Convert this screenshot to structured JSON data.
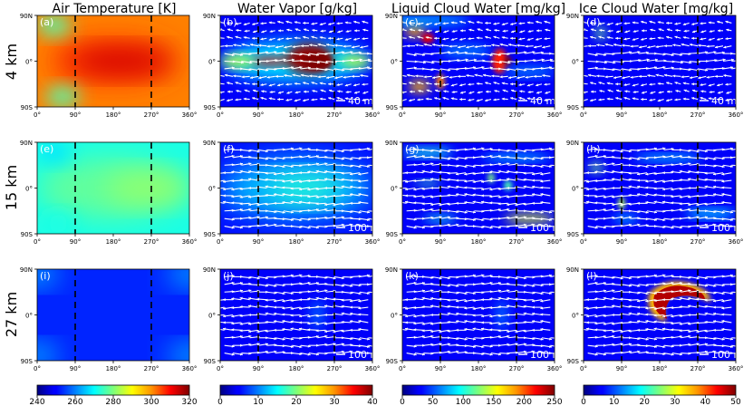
{
  "figure": {
    "column_titles": [
      "Air Temperature [K]",
      "Water Vapor [g/kg]",
      "Liquid Cloud Water [mg/kg]",
      "Ice Cloud Water [mg/kg]"
    ],
    "row_labels": [
      "4 km",
      "15 km",
      "27 km"
    ],
    "lon_ticks": [
      "0°",
      "90°",
      "180°",
      "270°",
      "360°"
    ],
    "lat_ticks": [
      "90N",
      "0°",
      "90S"
    ],
    "dashed_lines_lon": [
      90,
      270
    ]
  },
  "chart_data": [
    {
      "type": "heatmap",
      "panel": "(a)",
      "variable": "Air Temperature [K]",
      "altitude": "4 km",
      "x": [
        0,
        360
      ],
      "y": [
        -90,
        90
      ],
      "vlim": [
        240,
        320
      ],
      "vectors": false,
      "features": "warm equatorial band ~305-315 K, cooler high latitudes ~285 K"
    },
    {
      "type": "heatmap",
      "panel": "(b)",
      "variable": "Water Vapor [g/kg]",
      "altitude": "4 km",
      "x": [
        0,
        360
      ],
      "y": [
        -90,
        90
      ],
      "vlim": [
        0,
        40
      ],
      "vectors": true,
      "vector_key": "40 m/s",
      "features": "moist equatorial band, maximum >40 g/kg near 180-250°"
    },
    {
      "type": "heatmap",
      "panel": "(c)",
      "variable": "Liquid Cloud Water [mg/kg]",
      "altitude": "4 km",
      "x": [
        0,
        360
      ],
      "y": [
        -90,
        90
      ],
      "vlim": [
        0,
        250
      ],
      "vectors": true,
      "vector_key": "40 m/s",
      "features": "clouds near 20-60° mid-latitudes and near 210-240° equator"
    },
    {
      "type": "heatmap",
      "panel": "(d)",
      "variable": "Ice Cloud Water [mg/kg]",
      "altitude": "4 km",
      "x": [
        0,
        360
      ],
      "y": [
        -90,
        90
      ],
      "vlim": [
        0,
        50
      ],
      "vectors": true,
      "vector_key": "40 m/s",
      "features": "small patches near 40°,60N"
    },
    {
      "type": "heatmap",
      "panel": "(e)",
      "variable": "Air Temperature [K]",
      "altitude": "15 km",
      "x": [
        0,
        360
      ],
      "y": [
        -90,
        90
      ],
      "vlim": [
        240,
        320
      ],
      "vectors": false,
      "features": "mostly 265-280 K"
    },
    {
      "type": "heatmap",
      "panel": "(f)",
      "variable": "Water Vapor [g/kg]",
      "altitude": "15 km",
      "x": [
        0,
        360
      ],
      "y": [
        -90,
        90
      ],
      "vlim": [
        0,
        40
      ],
      "vectors": true,
      "vector_key": "100 m/s",
      "features": "low values 5-15 g/kg"
    },
    {
      "type": "heatmap",
      "panel": "(g)",
      "variable": "Liquid Cloud Water [mg/kg]",
      "altitude": "15 km",
      "x": [
        0,
        360
      ],
      "y": [
        -90,
        90
      ],
      "vlim": [
        0,
        250
      ],
      "vectors": true,
      "vector_key": "100 m/s",
      "features": "streaks at mid-latitudes, patches near 200-270°"
    },
    {
      "type": "heatmap",
      "panel": "(h)",
      "variable": "Ice Cloud Water [mg/kg]",
      "altitude": "15 km",
      "x": [
        0,
        360
      ],
      "y": [
        -90,
        90
      ],
      "vlim": [
        0,
        50
      ],
      "vectors": true,
      "vector_key": "100 m/s",
      "features": "thin streaks, patch near 20°,40N"
    },
    {
      "type": "heatmap",
      "panel": "(i)",
      "variable": "Air Temperature [K]",
      "altitude": "27 km",
      "x": [
        0,
        360
      ],
      "y": [
        -90,
        90
      ],
      "vlim": [
        240,
        320
      ],
      "vectors": false,
      "features": "cold ~245-255 K, slightly warmer near poles"
    },
    {
      "type": "heatmap",
      "panel": "(j)",
      "variable": "Water Vapor [g/kg]",
      "altitude": "27 km",
      "x": [
        0,
        360
      ],
      "y": [
        -90,
        90
      ],
      "vlim": [
        0,
        40
      ],
      "vectors": true,
      "vector_key": "100 m/s",
      "features": "near zero everywhere"
    },
    {
      "type": "heatmap",
      "panel": "(k)",
      "variable": "Liquid Cloud Water [mg/kg]",
      "altitude": "27 km",
      "x": [
        0,
        360
      ],
      "y": [
        -90,
        90
      ],
      "vlim": [
        0,
        250
      ],
      "vectors": true,
      "vector_key": "100 m/s",
      "features": "faint crescent near 230°"
    },
    {
      "type": "heatmap",
      "panel": "(l)",
      "variable": "Ice Cloud Water [mg/kg]",
      "altitude": "27 km",
      "x": [
        0,
        360
      ],
      "y": [
        -90,
        90
      ],
      "vlim": [
        0,
        50
      ],
      "vectors": true,
      "vector_key": "100 m/s",
      "features": "crescent-shaped ice cloud >50 mg/kg centered ~220-280°, 0-40N"
    }
  ],
  "colorbars": [
    {
      "ticks": [
        "240",
        "260",
        "280",
        "300",
        "320"
      ],
      "values": [
        240,
        260,
        280,
        300,
        320
      ]
    },
    {
      "ticks": [
        "0",
        "10",
        "20",
        "30",
        "40"
      ],
      "values": [
        0,
        10,
        20,
        30,
        40
      ]
    },
    {
      "ticks": [
        "0",
        "50",
        "100",
        "150",
        "200",
        "250"
      ],
      "values": [
        0,
        50,
        100,
        150,
        200,
        250
      ]
    },
    {
      "ticks": [
        "0",
        "10",
        "20",
        "30",
        "40",
        "50"
      ],
      "values": [
        0,
        10,
        20,
        30,
        40,
        50
      ]
    }
  ]
}
